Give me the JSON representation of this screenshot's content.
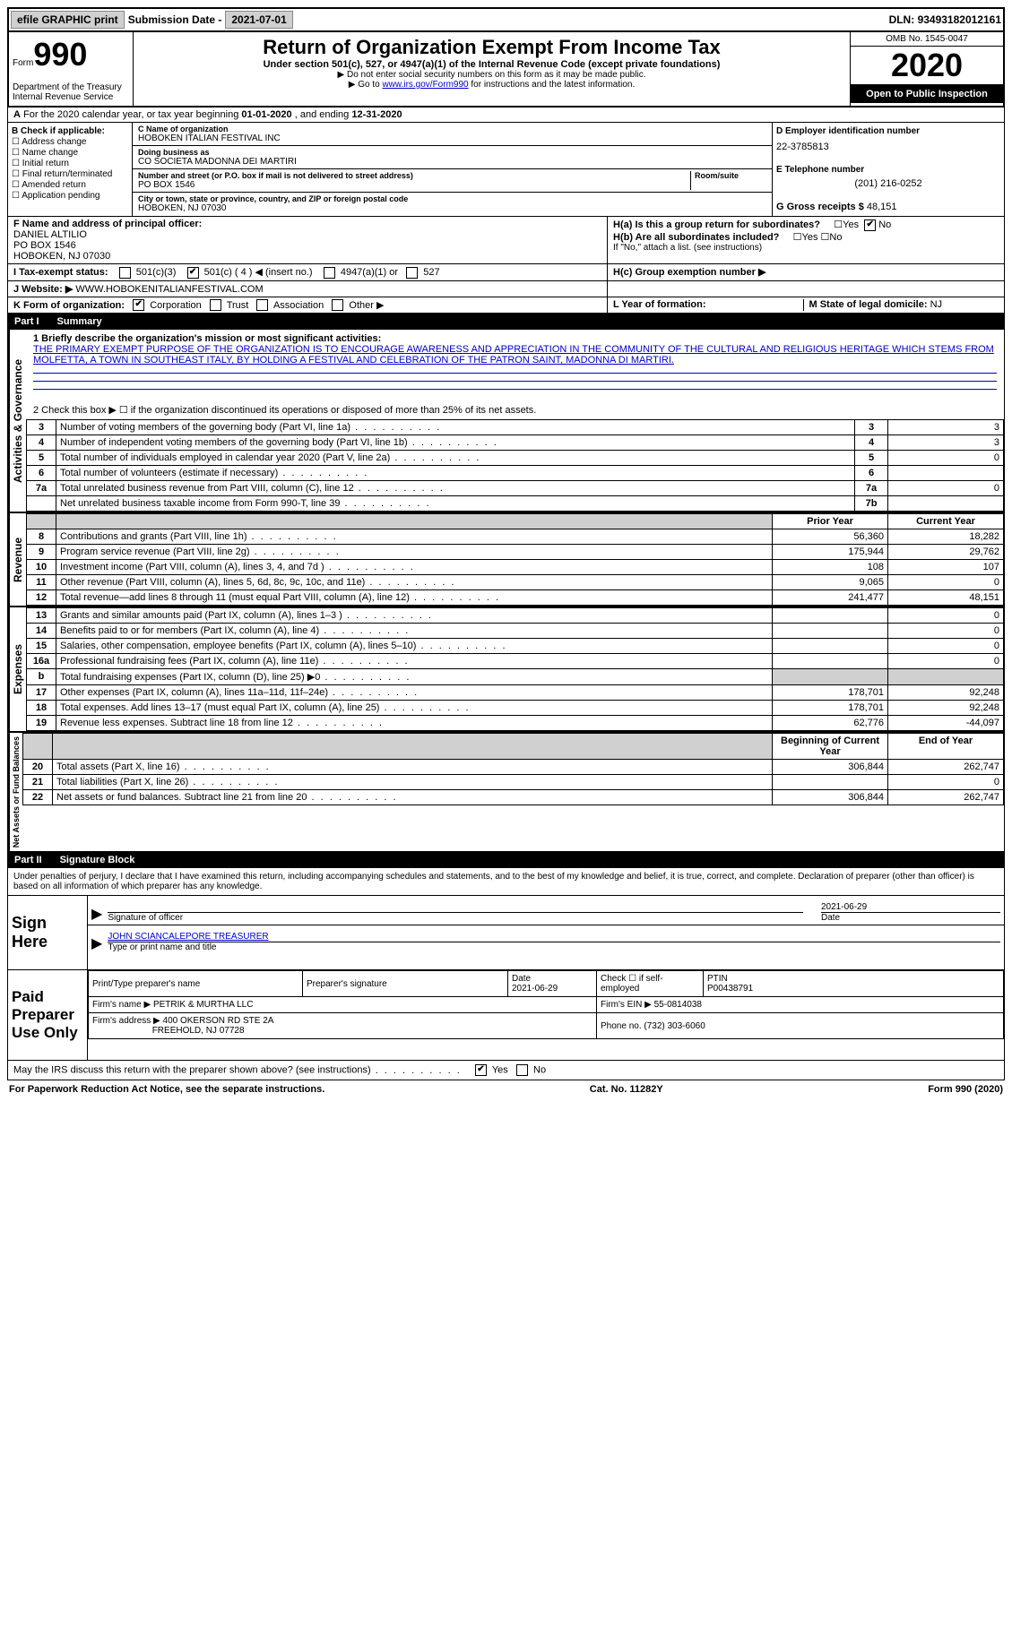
{
  "top": {
    "efile": "efile GRAPHIC print",
    "subdate_label": "Submission Date - ",
    "subdate": "2021-07-01",
    "dln_label": "DLN: ",
    "dln": "93493182012161"
  },
  "header": {
    "form_label": "Form",
    "form_num": "990",
    "dept": "Department of the Treasury\nInternal Revenue Service",
    "title": "Return of Organization Exempt From Income Tax",
    "subtitle": "Under section 501(c), 527, or 4947(a)(1) of the Internal Revenue Code (except private foundations)",
    "note1": "▶ Do not enter social security numbers on this form as it may be made public.",
    "note2_pre": "▶ Go to ",
    "note2_link": "www.irs.gov/Form990",
    "note2_post": " for instructions and the latest information.",
    "omb": "OMB No. 1545-0047",
    "year": "2020",
    "inspection": "Open to Public Inspection"
  },
  "rowA": {
    "label": "A",
    "text_pre": " For the 2020 calendar year, or tax year beginning ",
    "begin": "01-01-2020",
    "mid": " , and ending ",
    "end": "12-31-2020"
  },
  "colB": {
    "label": "B Check if applicable:",
    "opts": [
      "Address change",
      "Name change",
      "Initial return",
      "Final return/terminated",
      "Amended return",
      "Application pending"
    ]
  },
  "colC": {
    "name_lbl": "C Name of organization",
    "name": "HOBOKEN ITALIAN FESTIVAL INC",
    "dba_lbl": "Doing business as",
    "dba": "CO SOCIETA MADONNA DEI MARTIRI",
    "street_lbl": "Number and street (or P.O. box if mail is not delivered to street address)",
    "room_lbl": "Room/suite",
    "street": "PO BOX 1546",
    "city_lbl": "City or town, state or province, country, and ZIP or foreign postal code",
    "city": "HOBOKEN, NJ  07030"
  },
  "colD": {
    "ein_lbl": "D Employer identification number",
    "ein": "22-3785813",
    "phone_lbl": "E Telephone number",
    "phone": "(201) 216-0252",
    "gross_lbl": "G Gross receipts $ ",
    "gross": "48,151"
  },
  "rowF": {
    "f_lbl": "F  Name and address of principal officer:",
    "f_name": "DANIEL ALTILIO",
    "f_addr1": "PO BOX 1546",
    "f_addr2": "HOBOKEN, NJ  07030",
    "ha_lbl": "H(a)  Is this a group return for subordinates?",
    "hb_lbl": "H(b)  Are all subordinates included?",
    "h_note": "If \"No,\" attach a list. (see instructions)",
    "hc_lbl": "H(c)  Group exemption number ▶"
  },
  "rowI": {
    "label": "I   Tax-exempt status:",
    "opts": [
      "501(c)(3)",
      "501(c) ( 4 ) ◀ (insert no.)",
      "4947(a)(1) or",
      "527"
    ]
  },
  "rowJ": {
    "label": "J   Website: ▶",
    "val": " WWW.HOBOKENITALIANFESTIVAL.COM"
  },
  "rowK": {
    "label": "K Form of organization:",
    "opts": [
      "Corporation",
      "Trust",
      "Association",
      "Other ▶"
    ],
    "l_lbl": "L Year of formation:",
    "m_lbl": "M State of legal domicile: ",
    "m_val": "NJ"
  },
  "part1": {
    "num": "Part I",
    "title": "Summary",
    "side_gov": "Activities & Governance",
    "line1_lbl": "1  Briefly describe the organization's mission or most significant activities:",
    "line1_txt": "THE PRIMARY EXEMPT PURPOSE OF THE ORGANIZATION IS TO ENCOURAGE AWARENESS AND APPRECIATION IN THE COMMUNITY OF THE CULTURAL AND RELIGIOUS HERITAGE WHICH STEMS FROM MOLFETTA, A TOWN IN SOUTHEAST ITALY, BY HOLDING A FESTIVAL AND CELEBRATION OF THE PATRON SAINT, MADONNA DI MARTIRI.",
    "line2": "2   Check this box ▶ ☐ if the organization discontinued its operations or disposed of more than 25% of its net assets.",
    "rows_gov": [
      {
        "n": "3",
        "d": "Number of voting members of the governing body (Part VI, line 1a)",
        "box": "3",
        "v": "3"
      },
      {
        "n": "4",
        "d": "Number of independent voting members of the governing body (Part VI, line 1b)",
        "box": "4",
        "v": "3"
      },
      {
        "n": "5",
        "d": "Total number of individuals employed in calendar year 2020 (Part V, line 2a)",
        "box": "5",
        "v": "0"
      },
      {
        "n": "6",
        "d": "Total number of volunteers (estimate if necessary)",
        "box": "6",
        "v": ""
      },
      {
        "n": "7a",
        "d": "Total unrelated business revenue from Part VIII, column (C), line 12",
        "box": "7a",
        "v": "0"
      },
      {
        "n": "",
        "d": "Net unrelated business taxable income from Form 990-T, line 39",
        "box": "7b",
        "v": ""
      }
    ],
    "side_rev": "Revenue",
    "hdr_prior": "Prior Year",
    "hdr_curr": "Current Year",
    "rows_rev": [
      {
        "n": "8",
        "d": "Contributions and grants (Part VIII, line 1h)",
        "p": "56,360",
        "c": "18,282"
      },
      {
        "n": "9",
        "d": "Program service revenue (Part VIII, line 2g)",
        "p": "175,944",
        "c": "29,762"
      },
      {
        "n": "10",
        "d": "Investment income (Part VIII, column (A), lines 3, 4, and 7d )",
        "p": "108",
        "c": "107"
      },
      {
        "n": "11",
        "d": "Other revenue (Part VIII, column (A), lines 5, 6d, 8c, 9c, 10c, and 11e)",
        "p": "9,065",
        "c": "0"
      },
      {
        "n": "12",
        "d": "Total revenue—add lines 8 through 11 (must equal Part VIII, column (A), line 12)",
        "p": "241,477",
        "c": "48,151"
      }
    ],
    "side_exp": "Expenses",
    "rows_exp": [
      {
        "n": "13",
        "d": "Grants and similar amounts paid (Part IX, column (A), lines 1–3 )",
        "p": "",
        "c": "0"
      },
      {
        "n": "14",
        "d": "Benefits paid to or for members (Part IX, column (A), line 4)",
        "p": "",
        "c": "0"
      },
      {
        "n": "15",
        "d": "Salaries, other compensation, employee benefits (Part IX, column (A), lines 5–10)",
        "p": "",
        "c": "0"
      },
      {
        "n": "16a",
        "d": "Professional fundraising fees (Part IX, column (A), line 11e)",
        "p": "",
        "c": "0"
      },
      {
        "n": "b",
        "d": "Total fundraising expenses (Part IX, column (D), line 25) ▶0",
        "p": "gray",
        "c": "gray"
      },
      {
        "n": "17",
        "d": "Other expenses (Part IX, column (A), lines 11a–11d, 11f–24e)",
        "p": "178,701",
        "c": "92,248"
      },
      {
        "n": "18",
        "d": "Total expenses. Add lines 13–17 (must equal Part IX, column (A), line 25)",
        "p": "178,701",
        "c": "92,248"
      },
      {
        "n": "19",
        "d": "Revenue less expenses. Subtract line 18 from line 12",
        "p": "62,776",
        "c": "-44,097"
      }
    ],
    "side_net": "Net Assets or Fund Balances",
    "hdr_begin": "Beginning of Current Year",
    "hdr_end": "End of Year",
    "rows_net": [
      {
        "n": "20",
        "d": "Total assets (Part X, line 16)",
        "p": "306,844",
        "c": "262,747"
      },
      {
        "n": "21",
        "d": "Total liabilities (Part X, line 26)",
        "p": "",
        "c": "0"
      },
      {
        "n": "22",
        "d": "Net assets or fund balances. Subtract line 21 from line 20",
        "p": "306,844",
        "c": "262,747"
      }
    ]
  },
  "part2": {
    "num": "Part II",
    "title": "Signature Block",
    "penalty": "Under penalties of perjury, I declare that I have examined this return, including accompanying schedules and statements, and to the best of my knowledge and belief, it is true, correct, and complete. Declaration of preparer (other than officer) is based on all information of which preparer has any knowledge.",
    "sign_here": "Sign Here",
    "sig_officer": "Signature of officer",
    "sig_date": "2021-06-29",
    "date_lbl": "Date",
    "sig_name": "JOHN SCIANCALEPORE  TREASURER",
    "sig_name_lbl": "Type or print name and title",
    "paid_prep": "Paid Preparer Use Only",
    "print_name_lbl": "Print/Type preparer's name",
    "prep_sig_lbl": "Preparer's signature",
    "prep_date": "2021-06-29",
    "check_self": "Check ☐ if self-employed",
    "ptin_lbl": "PTIN",
    "ptin": "P00438791",
    "firm_name_lbl": "Firm's name    ▶ ",
    "firm_name": "PETRIK & MURTHA LLC",
    "firm_ein_lbl": "Firm's EIN ▶ ",
    "firm_ein": "55-0814038",
    "firm_addr_lbl": "Firm's address ▶ ",
    "firm_addr1": "400 OKERSON RD STE 2A",
    "firm_addr2": "FREEHOLD, NJ  07728",
    "firm_phone_lbl": "Phone no. ",
    "firm_phone": "(732) 303-6060",
    "discuss": "May the IRS discuss this return with the preparer shown above? (see instructions)",
    "yes": "Yes",
    "no": "No"
  },
  "footer": {
    "left": "For Paperwork Reduction Act Notice, see the separate instructions.",
    "mid": "Cat. No. 11282Y",
    "right": "Form 990 (2020)"
  }
}
